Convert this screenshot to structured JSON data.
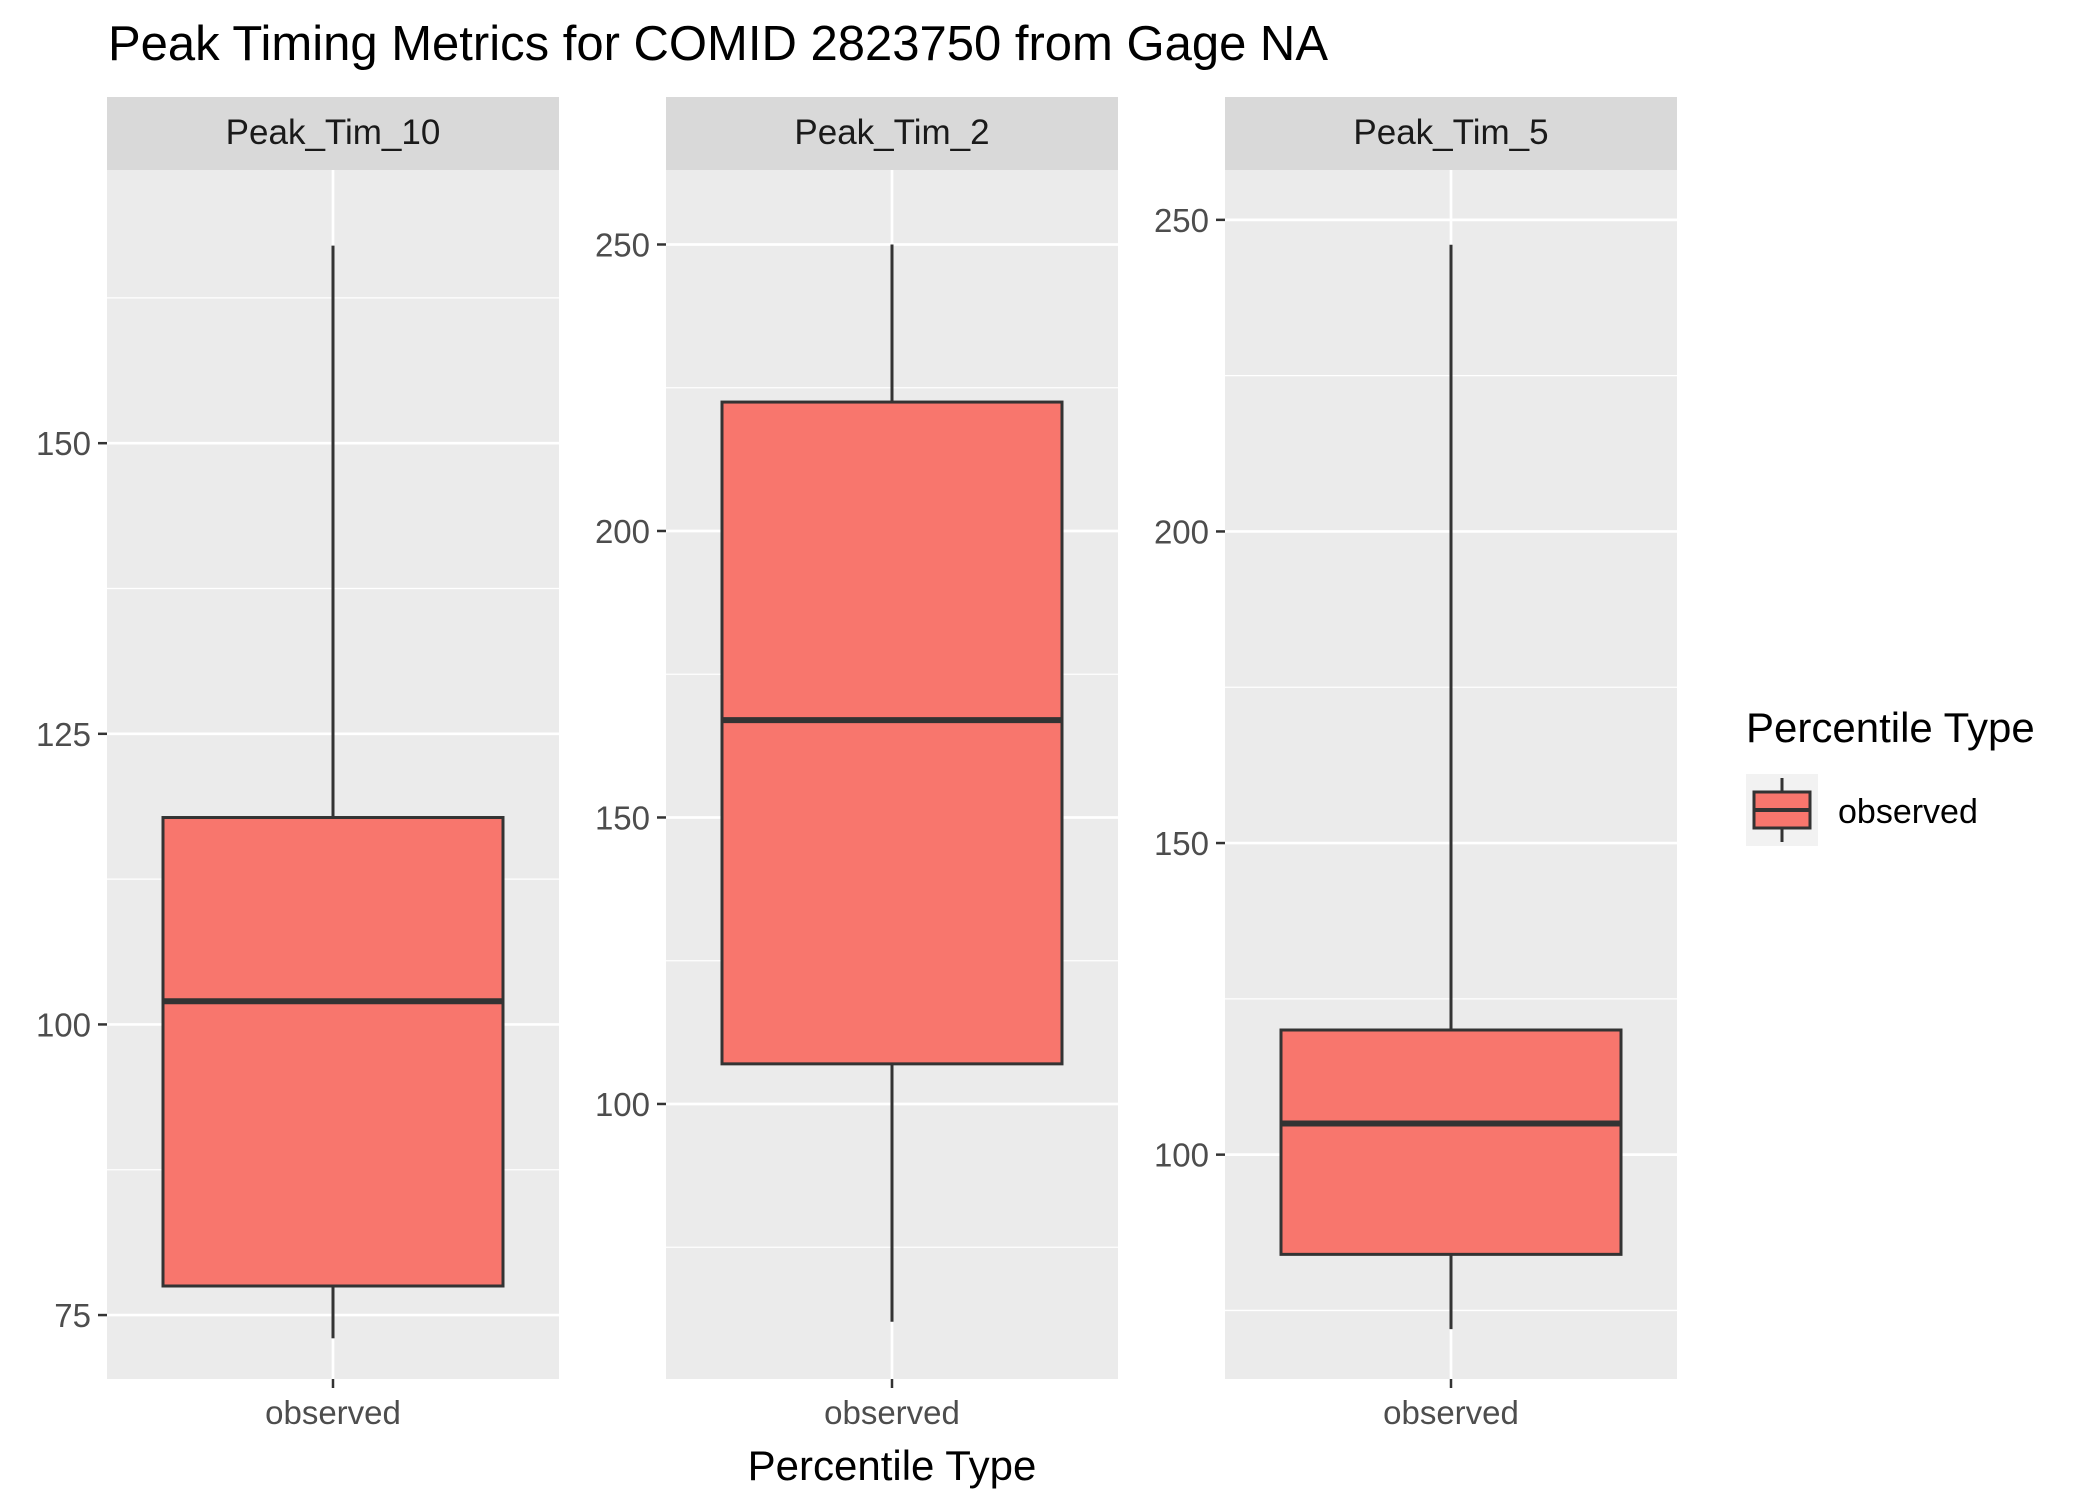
{
  "chart_data": {
    "type": "boxplot",
    "title": "Peak Timing Metrics for COMID 2823750 from Gage NA",
    "xlabel": "Percentile Type",
    "ylabel": "",
    "facets": [
      {
        "name": "Peak_Tim_10",
        "category": "observed",
        "whisker_low": 73,
        "q1": 77.5,
        "median": 102,
        "q3": 117.8,
        "whisker_high": 167,
        "ylim": [
          69.5,
          173.5
        ],
        "yticks": [
          75,
          100,
          125,
          150
        ]
      },
      {
        "name": "Peak_Tim_2",
        "category": "observed",
        "whisker_low": 62,
        "q1": 107,
        "median": 167,
        "q3": 222.5,
        "whisker_high": 250,
        "ylim": [
          52,
          263
        ],
        "yticks": [
          100,
          150,
          200,
          250
        ]
      },
      {
        "name": "Peak_Tim_5",
        "category": "observed",
        "whisker_low": 72,
        "q1": 84,
        "median": 105,
        "q3": 120,
        "whisker_high": 246,
        "ylim": [
          64,
          258
        ],
        "yticks": [
          100,
          150,
          200,
          250
        ]
      }
    ],
    "legend": {
      "title": "Percentile Type",
      "position": "right",
      "items": [
        {
          "label": "observed"
        }
      ]
    },
    "colors": {
      "box_fill": "#F8766D",
      "box_stroke": "#333333",
      "panel_bg": "#EBEBEB",
      "strip_bg": "#D9D9D9",
      "grid": "#FFFFFF",
      "text": "#000000",
      "tick_text": "#4D4D4D",
      "tick_mark": "#333333"
    }
  }
}
